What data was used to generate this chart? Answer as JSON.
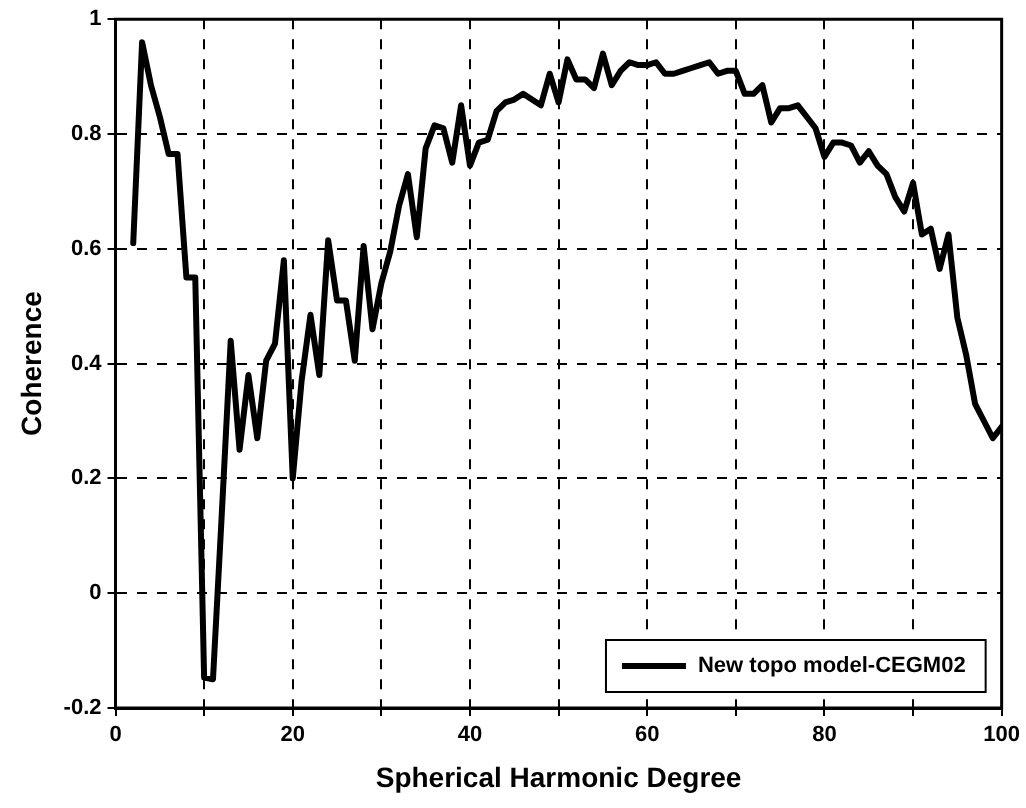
{
  "chart_data": {
    "type": "line",
    "xlabel": "Spherical Harmonic Degree",
    "ylabel": "Coherence",
    "x": [
      2,
      3,
      4,
      5,
      6,
      7,
      8,
      9,
      10,
      11,
      12,
      13,
      14,
      15,
      16,
      17,
      18,
      19,
      20,
      21,
      22,
      23,
      24,
      25,
      26,
      27,
      28,
      29,
      30,
      31,
      32,
      33,
      34,
      35,
      36,
      37,
      38,
      39,
      40,
      41,
      42,
      43,
      44,
      45,
      46,
      47,
      48,
      49,
      50,
      51,
      52,
      53,
      54,
      55,
      56,
      57,
      58,
      59,
      60,
      61,
      62,
      63,
      64,
      65,
      66,
      67,
      68,
      69,
      70,
      71,
      72,
      73,
      74,
      75,
      76,
      77,
      78,
      79,
      80,
      81,
      82,
      83,
      84,
      85,
      86,
      87,
      88,
      89,
      90,
      91,
      92,
      93,
      94,
      95,
      96,
      97,
      98,
      99,
      100
    ],
    "series": [
      {
        "name": "New topo model-CEGM02",
        "color": "#000000",
        "values": [
          0.61,
          0.96,
          0.885,
          0.83,
          0.765,
          0.765,
          0.55,
          0.55,
          -0.147,
          -0.15,
          0.14,
          0.44,
          0.25,
          0.38,
          0.27,
          0.405,
          0.435,
          0.58,
          0.2,
          0.37,
          0.485,
          0.38,
          0.615,
          0.51,
          0.51,
          0.405,
          0.605,
          0.46,
          0.54,
          0.595,
          0.675,
          0.73,
          0.62,
          0.775,
          0.815,
          0.81,
          0.75,
          0.85,
          0.745,
          0.785,
          0.79,
          0.84,
          0.855,
          0.86,
          0.87,
          0.86,
          0.85,
          0.905,
          0.855,
          0.93,
          0.895,
          0.895,
          0.88,
          0.94,
          0.885,
          0.91,
          0.925,
          0.92,
          0.92,
          0.925,
          0.905,
          0.905,
          0.91,
          0.915,
          0.92,
          0.925,
          0.905,
          0.91,
          0.91,
          0.87,
          0.87,
          0.885,
          0.82,
          0.845,
          0.845,
          0.85,
          0.83,
          0.81,
          0.76,
          0.785,
          0.785,
          0.78,
          0.75,
          0.77,
          0.745,
          0.73,
          0.69,
          0.665,
          0.715,
          0.625,
          0.635,
          0.565,
          0.625,
          0.48,
          0.415,
          0.33,
          0.3,
          0.27,
          0.29
        ]
      }
    ],
    "xlim": [
      0,
      100
    ],
    "xticks": [
      0,
      {
        "value": 10,
        "label": null
      },
      20,
      {
        "value": 30,
        "label": null
      },
      40,
      {
        "value": 50,
        "label": null
      },
      60,
      {
        "value": 70,
        "label": null
      },
      80,
      {
        "value": 90,
        "label": null
      },
      100
    ],
    "ylim": [
      -0.2,
      1
    ],
    "yticks": [
      -0.2,
      0,
      0.2,
      0.4,
      0.6,
      0.8,
      1
    ],
    "grid": true,
    "legend": "bottom right",
    "marker": "none",
    "line_style": "solid"
  }
}
